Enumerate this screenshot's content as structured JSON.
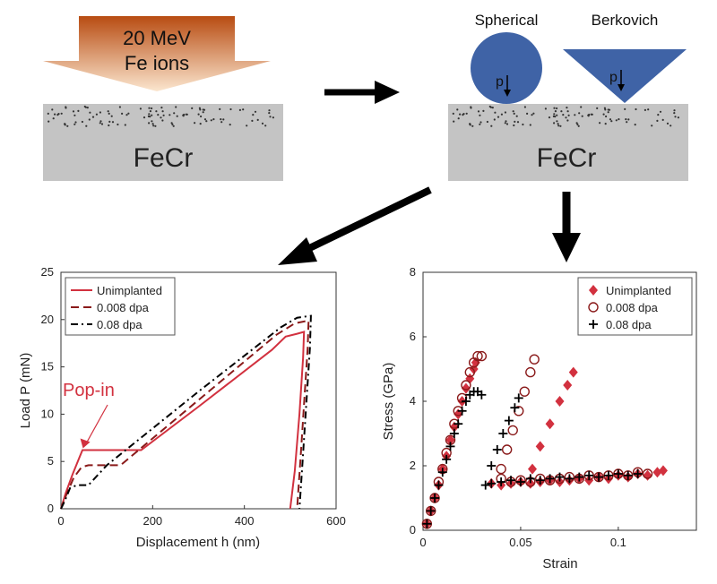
{
  "top_left": {
    "beam_line1": "20 MeV",
    "beam_line2": "Fe ions",
    "sample_label": "FeCr"
  },
  "top_right": {
    "spherical_label": "Spherical",
    "berkovich_label": "Berkovich",
    "p_label": "p",
    "sample_label": "FeCr"
  },
  "colors": {
    "beam_top": "#b84c12",
    "beam_bottom": "#fbe6cf",
    "sample": "#c4c4c4",
    "indenter": "#3f63a6",
    "arrow": "#000000",
    "unimplanted": "#d2313f",
    "dpa_0008": "#8a1a1a",
    "dpa_008": "#000000",
    "popin": "#d2313f"
  },
  "chart_data": [
    {
      "type": "line",
      "xlabel": "Displacement  h (nm)",
      "ylabel": "Load  P (mN)",
      "xlim": [
        0,
        600
      ],
      "ylim": [
        0,
        25
      ],
      "xticks": [
        0,
        200,
        400,
        600
      ],
      "yticks": [
        0,
        5,
        10,
        15,
        20,
        25
      ],
      "legend_position": "top-left",
      "annotation": "Pop-in",
      "annotation_point": [
        48,
        6.2
      ],
      "series": [
        {
          "name": "Unimplanted",
          "style": "solid",
          "points": [
            [
              0,
              0
            ],
            [
              10,
              1.6
            ],
            [
              25,
              3.6
            ],
            [
              40,
              5.4
            ],
            [
              47,
              6.2
            ],
            [
              95,
              6.2
            ],
            [
              175,
              6.2
            ],
            [
              300,
              10.8
            ],
            [
              460,
              16.8
            ],
            [
              490,
              18.2
            ],
            [
              515,
              18.5
            ],
            [
              530,
              18.7
            ],
            [
              528,
              16
            ],
            [
              520,
              10
            ],
            [
              510,
              4
            ],
            [
              500,
              0
            ]
          ]
        },
        {
          "name": "0.008 dpa",
          "style": "dashed",
          "points": [
            [
              0,
              0
            ],
            [
              12,
              1.5
            ],
            [
              28,
              3.3
            ],
            [
              45,
              4.4
            ],
            [
              60,
              4.6
            ],
            [
              100,
              4.6
            ],
            [
              130,
              4.6
            ],
            [
              300,
              11.5
            ],
            [
              470,
              18.4
            ],
            [
              510,
              19.6
            ],
            [
              540,
              19.9
            ],
            [
              538,
              17
            ],
            [
              530,
              11
            ],
            [
              522,
              5
            ],
            [
              515,
              0
            ]
          ]
        },
        {
          "name": "0.08 dpa",
          "style": "dashdot",
          "points": [
            [
              0,
              0
            ],
            [
              8,
              0.8
            ],
            [
              20,
              2.2
            ],
            [
              35,
              2.5
            ],
            [
              60,
              2.5
            ],
            [
              100,
              4.6
            ],
            [
              300,
              12.4
            ],
            [
              480,
              19.2
            ],
            [
              515,
              20.2
            ],
            [
              545,
              20.4
            ],
            [
              543,
              17
            ],
            [
              535,
              11
            ],
            [
              527,
              5
            ],
            [
              520,
              0
            ]
          ]
        }
      ]
    },
    {
      "type": "scatter",
      "xlabel": "Strain",
      "ylabel": "Stress (GPa)",
      "xlim": [
        0,
        0.14
      ],
      "ylim": [
        0,
        8
      ],
      "xticks": [
        0,
        0.05,
        0.1
      ],
      "yticks": [
        0,
        2,
        4,
        6,
        8
      ],
      "legend_position": "top-right",
      "series": [
        {
          "name": "Unimplanted",
          "marker": "diamond",
          "points": [
            [
              0.002,
              0.2
            ],
            [
              0.004,
              0.6
            ],
            [
              0.006,
              1.0
            ],
            [
              0.008,
              1.4
            ],
            [
              0.01,
              1.9
            ],
            [
              0.012,
              2.3
            ],
            [
              0.014,
              2.8
            ],
            [
              0.016,
              3.2
            ],
            [
              0.018,
              3.6
            ],
            [
              0.02,
              4.0
            ],
            [
              0.022,
              4.4
            ],
            [
              0.024,
              4.7
            ],
            [
              0.026,
              5.0
            ],
            [
              0.027,
              5.2
            ],
            [
              0.035,
              1.45
            ],
            [
              0.04,
              1.4
            ],
            [
              0.045,
              1.45
            ],
            [
              0.05,
              1.5
            ],
            [
              0.055,
              1.45
            ],
            [
              0.06,
              1.5
            ],
            [
              0.065,
              1.55
            ],
            [
              0.07,
              1.5
            ],
            [
              0.075,
              1.55
            ],
            [
              0.08,
              1.6
            ],
            [
              0.085,
              1.55
            ],
            [
              0.09,
              1.65
            ],
            [
              0.095,
              1.6
            ],
            [
              0.1,
              1.7
            ],
            [
              0.105,
              1.65
            ],
            [
              0.11,
              1.75
            ],
            [
              0.115,
              1.7
            ],
            [
              0.12,
              1.8
            ],
            [
              0.123,
              1.85
            ],
            [
              0.056,
              1.9
            ],
            [
              0.06,
              2.6
            ],
            [
              0.065,
              3.3
            ],
            [
              0.07,
              4.0
            ],
            [
              0.074,
              4.5
            ],
            [
              0.077,
              4.9
            ]
          ]
        },
        {
          "name": "0.008 dpa",
          "marker": "circle",
          "points": [
            [
              0.002,
              0.2
            ],
            [
              0.004,
              0.6
            ],
            [
              0.006,
              1.0
            ],
            [
              0.008,
              1.5
            ],
            [
              0.01,
              1.9
            ],
            [
              0.012,
              2.4
            ],
            [
              0.014,
              2.8
            ],
            [
              0.016,
              3.3
            ],
            [
              0.018,
              3.7
            ],
            [
              0.02,
              4.1
            ],
            [
              0.022,
              4.5
            ],
            [
              0.024,
              4.9
            ],
            [
              0.026,
              5.2
            ],
            [
              0.028,
              5.4
            ],
            [
              0.03,
              5.4
            ],
            [
              0.04,
              1.6
            ],
            [
              0.045,
              1.5
            ],
            [
              0.05,
              1.55
            ],
            [
              0.055,
              1.5
            ],
            [
              0.06,
              1.6
            ],
            [
              0.065,
              1.55
            ],
            [
              0.07,
              1.6
            ],
            [
              0.075,
              1.65
            ],
            [
              0.08,
              1.6
            ],
            [
              0.085,
              1.7
            ],
            [
              0.09,
              1.65
            ],
            [
              0.095,
              1.7
            ],
            [
              0.1,
              1.75
            ],
            [
              0.105,
              1.7
            ],
            [
              0.11,
              1.8
            ],
            [
              0.115,
              1.75
            ],
            [
              0.04,
              1.9
            ],
            [
              0.043,
              2.5
            ],
            [
              0.046,
              3.1
            ],
            [
              0.049,
              3.7
            ],
            [
              0.052,
              4.3
            ],
            [
              0.055,
              4.9
            ],
            [
              0.057,
              5.3
            ]
          ]
        },
        {
          "name": "0.08 dpa",
          "marker": "plus",
          "points": [
            [
              0.002,
              0.2
            ],
            [
              0.004,
              0.6
            ],
            [
              0.006,
              1.0
            ],
            [
              0.008,
              1.4
            ],
            [
              0.01,
              1.8
            ],
            [
              0.012,
              2.2
            ],
            [
              0.014,
              2.6
            ],
            [
              0.016,
              3.0
            ],
            [
              0.018,
              3.3
            ],
            [
              0.02,
              3.7
            ],
            [
              0.022,
              4.0
            ],
            [
              0.024,
              4.2
            ],
            [
              0.026,
              4.3
            ],
            [
              0.028,
              4.3
            ],
            [
              0.03,
              4.2
            ],
            [
              0.032,
              1.4
            ],
            [
              0.035,
              1.45
            ],
            [
              0.04,
              1.5
            ],
            [
              0.045,
              1.55
            ],
            [
              0.05,
              1.5
            ],
            [
              0.055,
              1.6
            ],
            [
              0.06,
              1.55
            ],
            [
              0.065,
              1.6
            ],
            [
              0.07,
              1.65
            ],
            [
              0.075,
              1.6
            ],
            [
              0.08,
              1.65
            ],
            [
              0.085,
              1.7
            ],
            [
              0.09,
              1.65
            ],
            [
              0.095,
              1.7
            ],
            [
              0.1,
              1.75
            ],
            [
              0.105,
              1.7
            ],
            [
              0.11,
              1.75
            ],
            [
              0.035,
              2.0
            ],
            [
              0.038,
              2.5
            ],
            [
              0.041,
              3.0
            ],
            [
              0.044,
              3.4
            ],
            [
              0.047,
              3.8
            ],
            [
              0.049,
              4.1
            ]
          ]
        }
      ]
    }
  ]
}
